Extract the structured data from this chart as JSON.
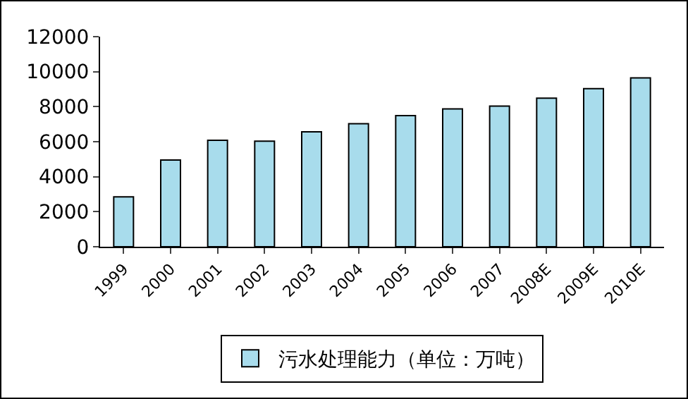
{
  "chart_data": {
    "type": "bar",
    "categories": [
      "1999",
      "2000",
      "2001",
      "2002",
      "2003",
      "2004",
      "2005",
      "2006",
      "2007",
      "2008E",
      "2009E",
      "2010E"
    ],
    "series": [
      {
        "name": "污水处理能力（单位：万吨）",
        "color": "#a8dcec",
        "values": [
          2850,
          4950,
          6080,
          6030,
          6560,
          7030,
          7490,
          7870,
          8030,
          8490,
          9030,
          9640
        ]
      }
    ],
    "ylim": [
      0,
      12000
    ],
    "yticks": [
      0,
      2000,
      4000,
      6000,
      8000,
      10000,
      12000
    ],
    "grid": false,
    "legend": "bottom"
  }
}
